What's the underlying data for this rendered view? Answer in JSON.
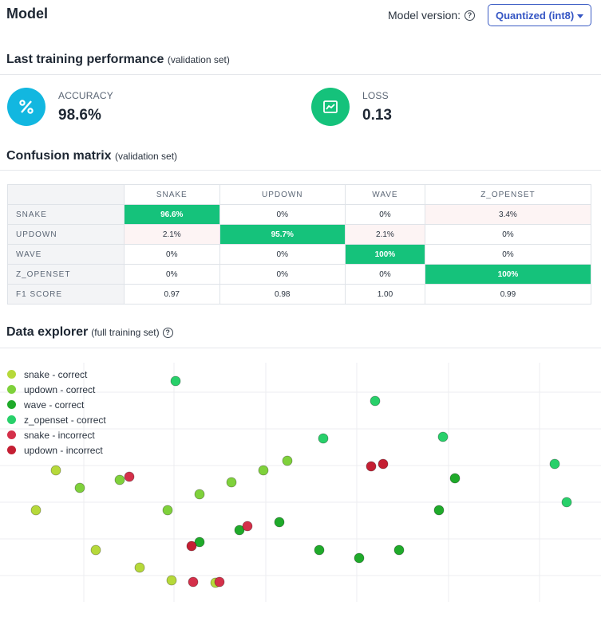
{
  "header": {
    "title": "Model",
    "version_label": "Model version:",
    "version_selected": "Quantized (int8)"
  },
  "performance": {
    "title": "Last training performance",
    "subtitle": "(validation set)",
    "accuracy": {
      "label": "ACCURACY",
      "value": "98.6%",
      "icon": "percent-icon",
      "color": "#12b7e0"
    },
    "loss": {
      "label": "LOSS",
      "value": "0.13",
      "icon": "trend-chart-icon",
      "color": "#15c27b"
    }
  },
  "confusion": {
    "title": "Confusion matrix",
    "subtitle": "(validation set)",
    "columns": [
      "SNAKE",
      "UPDOWN",
      "WAVE",
      "Z_OPENSET"
    ],
    "rows": [
      {
        "label": "SNAKE",
        "cells": [
          "96.6%",
          "0%",
          "0%",
          "3.4%"
        ]
      },
      {
        "label": "UPDOWN",
        "cells": [
          "2.1%",
          "95.7%",
          "2.1%",
          "0%"
        ]
      },
      {
        "label": "WAVE",
        "cells": [
          "0%",
          "0%",
          "100%",
          "0%"
        ]
      },
      {
        "label": "Z_OPENSET",
        "cells": [
          "0%",
          "0%",
          "0%",
          "100%"
        ]
      }
    ],
    "f1": {
      "label": "F1 SCORE",
      "cells": [
        "0.97",
        "0.98",
        "1.00",
        "0.99"
      ]
    },
    "highlight_color": "#15c27b"
  },
  "explorer": {
    "title": "Data explorer",
    "subtitle": "(full training set)",
    "legend": [
      {
        "label": "snake - correct",
        "color": "#b6d93a"
      },
      {
        "label": "updown - correct",
        "color": "#7fd13b"
      },
      {
        "label": "wave - correct",
        "color": "#1faa2a"
      },
      {
        "label": "z_openset - correct",
        "color": "#28d06a"
      },
      {
        "label": "snake - incorrect",
        "color": "#d4304a"
      },
      {
        "label": "updown - incorrect",
        "color": "#c41f33"
      }
    ]
  },
  "chart_data": {
    "type": "scatter",
    "grid": true,
    "series": [
      {
        "name": "snake - correct",
        "color": "#b6d93a",
        "x": [
          45,
          70,
          120,
          175,
          215,
          270
        ],
        "y": [
          640,
          590,
          690,
          712,
          728,
          731
        ]
      },
      {
        "name": "updown - correct",
        "color": "#7fd13b",
        "x": [
          100,
          150,
          210,
          250,
          290,
          330,
          360
        ],
        "y": [
          612,
          602,
          640,
          620,
          605,
          590,
          578
        ]
      },
      {
        "name": "wave - correct",
        "color": "#1faa2a",
        "x": [
          250,
          300,
          350,
          400,
          450,
          500,
          550,
          570
        ],
        "y": [
          680,
          665,
          655,
          690,
          700,
          690,
          640,
          600
        ]
      },
      {
        "name": "z_openset - correct",
        "color": "#28d06a",
        "x": [
          220,
          470,
          405,
          555,
          695,
          710
        ],
        "y": [
          478,
          503,
          550,
          548,
          582,
          630
        ]
      },
      {
        "name": "snake - incorrect",
        "color": "#d4304a",
        "x": [
          162,
          242,
          275,
          310
        ],
        "y": [
          598,
          730,
          730,
          660
        ]
      },
      {
        "name": "updown - incorrect",
        "color": "#c41f33",
        "x": [
          465,
          480,
          240
        ],
        "y": [
          585,
          582,
          685
        ]
      }
    ]
  }
}
